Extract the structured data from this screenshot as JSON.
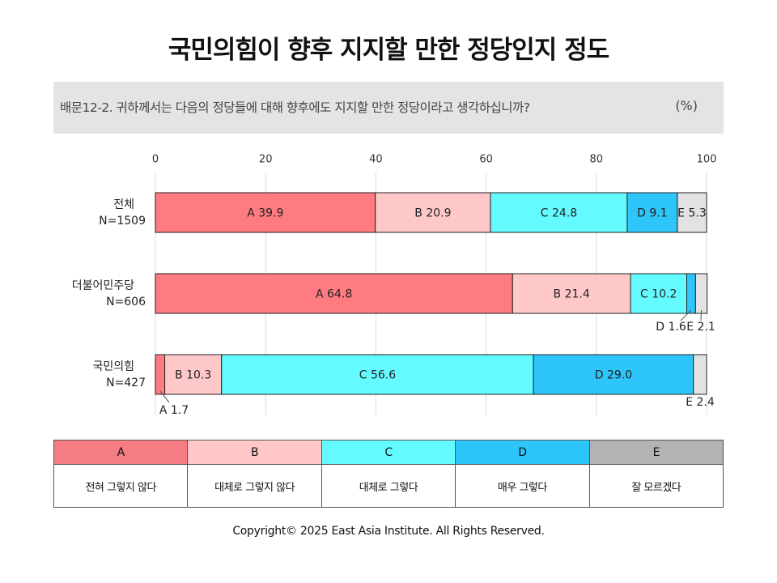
{
  "title": "국민의힘이 향후 지지할 만한 정당인지 정도",
  "question": {
    "text": "배문12-2. 귀하께서는 다음의 정당들에 대해 향후에도 지지할 만한 정당이라고 생각하십니까?",
    "unit": "(%)"
  },
  "chart_data": {
    "type": "bar",
    "orientation": "horizontal-stacked",
    "xlim": [
      0,
      100
    ],
    "xticks": [
      "0",
      "20",
      "40",
      "60",
      "80",
      "100"
    ],
    "grid": true,
    "categories": [
      {
        "name": "전체",
        "n": "N=1509"
      },
      {
        "name": "더불어민주당",
        "n": "N=606"
      },
      {
        "name": "국민의힘",
        "n": "N=427"
      }
    ],
    "series": [
      {
        "name": "A",
        "color": "#ff7b82",
        "values": [
          39.9,
          64.8,
          1.7
        ]
      },
      {
        "name": "B",
        "color": "#ffc8c8",
        "values": [
          20.9,
          21.4,
          10.3
        ]
      },
      {
        "name": "C",
        "color": "#63fbff",
        "values": [
          24.8,
          10.2,
          56.6
        ]
      },
      {
        "name": "D",
        "color": "#2ec5fb",
        "values": [
          9.1,
          1.6,
          29.0
        ]
      },
      {
        "name": "E",
        "color": "#e2e2e2",
        "values": [
          5.3,
          2.1,
          2.4
        ]
      }
    ],
    "labels": [
      [
        "A 39.9",
        "B 20.9",
        "C 24.8",
        "D 9.1",
        "E 5.3"
      ],
      [
        "A 64.8",
        "B 21.4",
        "C 10.2",
        "D 1.6",
        "E 2.1"
      ],
      [
        "A 1.7",
        "B 10.3",
        "C 56.6",
        "D 29.0",
        "E 2.4"
      ]
    ]
  },
  "legend": [
    {
      "key": "A",
      "desc": "전혀 그렇지 않다",
      "color": "#f47c82"
    },
    {
      "key": "B",
      "desc": "대체로 그렇지 않다",
      "color": "#ffc7c7"
    },
    {
      "key": "C",
      "desc": "대체로 그렇다",
      "color": "#63fbff"
    },
    {
      "key": "D",
      "desc": "매우 그렇다",
      "color": "#2ec5fb"
    },
    {
      "key": "E",
      "desc": "잘 모르겠다",
      "color": "#b3b3b3"
    }
  ],
  "copyright": "Copyright© 2025 East Asia Institute. All Rights Reserved."
}
